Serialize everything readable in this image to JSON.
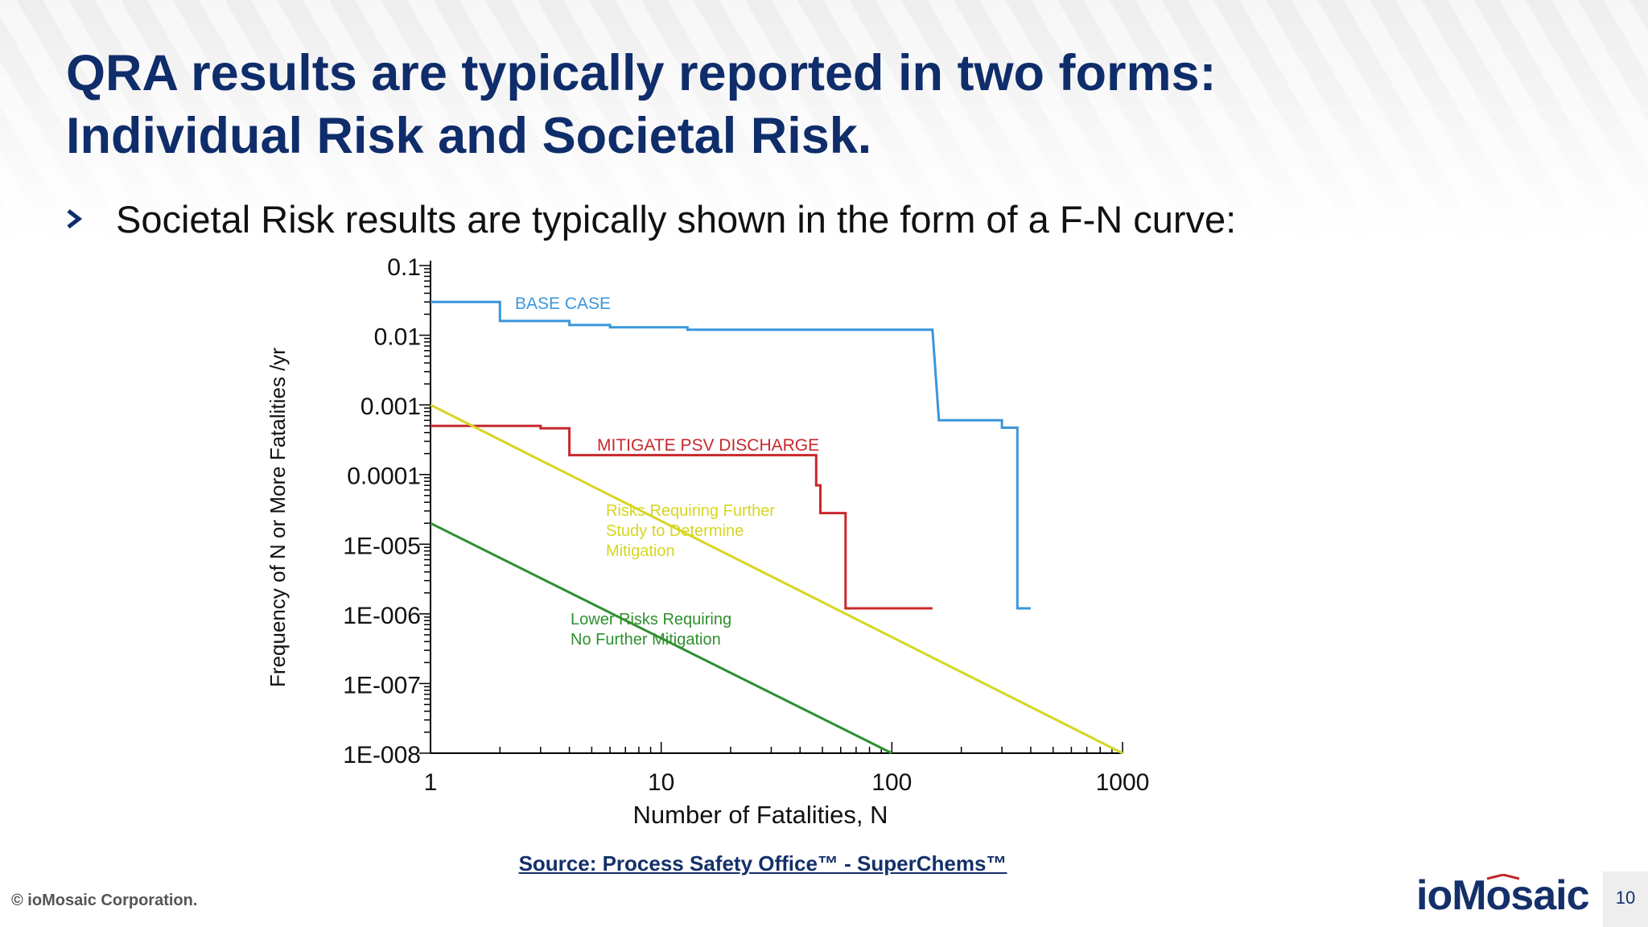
{
  "slide": {
    "title_line1": "QRA results are typically reported in two forms:",
    "title_line2": "Individual Risk and Societal Risk.",
    "bullet": "Societal Risk results are typically shown in the form of a F-N curve:",
    "source": "Source: Process Safety Office™ - SuperChems™",
    "copyright": "© ioMosaic Corporation.",
    "logo": "ioMosaic",
    "page_number": "10",
    "colors": {
      "title": "#0f2d6b",
      "logo": "#14306a",
      "logo_accent": "#c0272d"
    },
    "icons": {
      "bullet": "chevron-right-icon"
    }
  },
  "chart_data": {
    "type": "line",
    "x_scale": "log",
    "y_scale": "log",
    "xlabel": "Number of Fatalities, N",
    "ylabel": "Frequency  of N or More Fatalities /yr",
    "xlim": [
      1,
      1000
    ],
    "ylim": [
      1e-08,
      0.1
    ],
    "x_ticks": [
      "1",
      "10",
      "100",
      "1000"
    ],
    "y_ticks": [
      "1E-008",
      "1E-007",
      "1E-006",
      "1E-005",
      "0.0001",
      "0.001",
      "0.01",
      "0.1"
    ],
    "series": [
      {
        "name": "BASE CASE",
        "color": "#3a96dc",
        "step": true,
        "points": [
          [
            1,
            0.03
          ],
          [
            2,
            0.03
          ],
          [
            2,
            0.016
          ],
          [
            4,
            0.016
          ],
          [
            4,
            0.014
          ],
          [
            6,
            0.014
          ],
          [
            6,
            0.013
          ],
          [
            13,
            0.013
          ],
          [
            13,
            0.012
          ],
          [
            150,
            0.012
          ],
          [
            150,
            0.012
          ],
          [
            160,
            0.0006
          ],
          [
            300,
            0.0006
          ],
          [
            300,
            0.00047
          ],
          [
            350,
            0.00047
          ],
          [
            350,
            1.2e-06
          ],
          [
            400,
            1.2e-06
          ]
        ]
      },
      {
        "name": "MITIGATE  PSV DISCHARGE",
        "color": "#c8282d",
        "step": true,
        "points": [
          [
            1,
            0.0005
          ],
          [
            3,
            0.0005
          ],
          [
            3,
            0.00046
          ],
          [
            4,
            0.00046
          ],
          [
            4,
            0.00019
          ],
          [
            47,
            0.00019
          ],
          [
            47,
            7e-05
          ],
          [
            49,
            7e-05
          ],
          [
            49,
            2.8e-05
          ],
          [
            63,
            2.8e-05
          ],
          [
            63,
            1.2e-06
          ],
          [
            150,
            1.2e-06
          ]
        ]
      },
      {
        "name": "Risks Requiring Further Study to Determine Mitigation",
        "color": "#d6d622",
        "points": [
          [
            1,
            0.001
          ],
          [
            1000,
            1e-08
          ]
        ]
      },
      {
        "name": "Lower Risks Requiring No Further Mitigation",
        "color": "#2f8f2f",
        "points": [
          [
            1,
            2e-05
          ],
          [
            100,
            1e-08
          ]
        ]
      }
    ],
    "annotations": [
      {
        "series": 0,
        "lines": [
          "BASE CASE"
        ]
      },
      {
        "series": 1,
        "lines": [
          "MITIGATE  PSV DISCHARGE"
        ]
      },
      {
        "series": 2,
        "lines": [
          "Risks Requiring Further",
          "Study to Determine",
          "Mitigation"
        ]
      },
      {
        "series": 3,
        "lines": [
          "Lower Risks Requiring",
          "No Further Mitigation"
        ]
      }
    ]
  }
}
